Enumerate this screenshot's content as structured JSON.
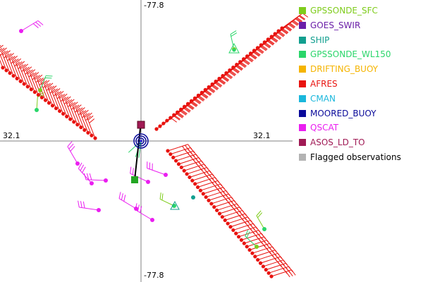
{
  "axes": {
    "top_label": "-77.8",
    "bottom_label": "-77.8",
    "left_label": "32.1",
    "right_label": "32.1"
  },
  "legend": [
    {
      "label": "GPSSONDE_SFC",
      "color": "#7fcc1c"
    },
    {
      "label": "GOES_SWIR",
      "color": "#6a1ea8"
    },
    {
      "label": "SHIP",
      "color": "#129f8f"
    },
    {
      "label": "GPSSONDE_WL150",
      "color": "#2ad66a"
    },
    {
      "label": "DRIFTING_BUOY",
      "color": "#f5b400"
    },
    {
      "label": "AFRES",
      "color": "#e8130f"
    },
    {
      "label": "CMAN",
      "color": "#1ab7dc"
    },
    {
      "label": "MOORED_BUOY",
      "color": "#0a0a9a"
    },
    {
      "label": "QSCAT",
      "color": "#ea1ef0"
    },
    {
      "label": "ASOS_LD_TO",
      "color": "#a01a55"
    },
    {
      "label": "Flagged observations",
      "color": "#b3b3b3"
    }
  ],
  "icons": {
    "center_marker": "storm-center-icon",
    "ship_marker": "triangle-icon"
  }
}
